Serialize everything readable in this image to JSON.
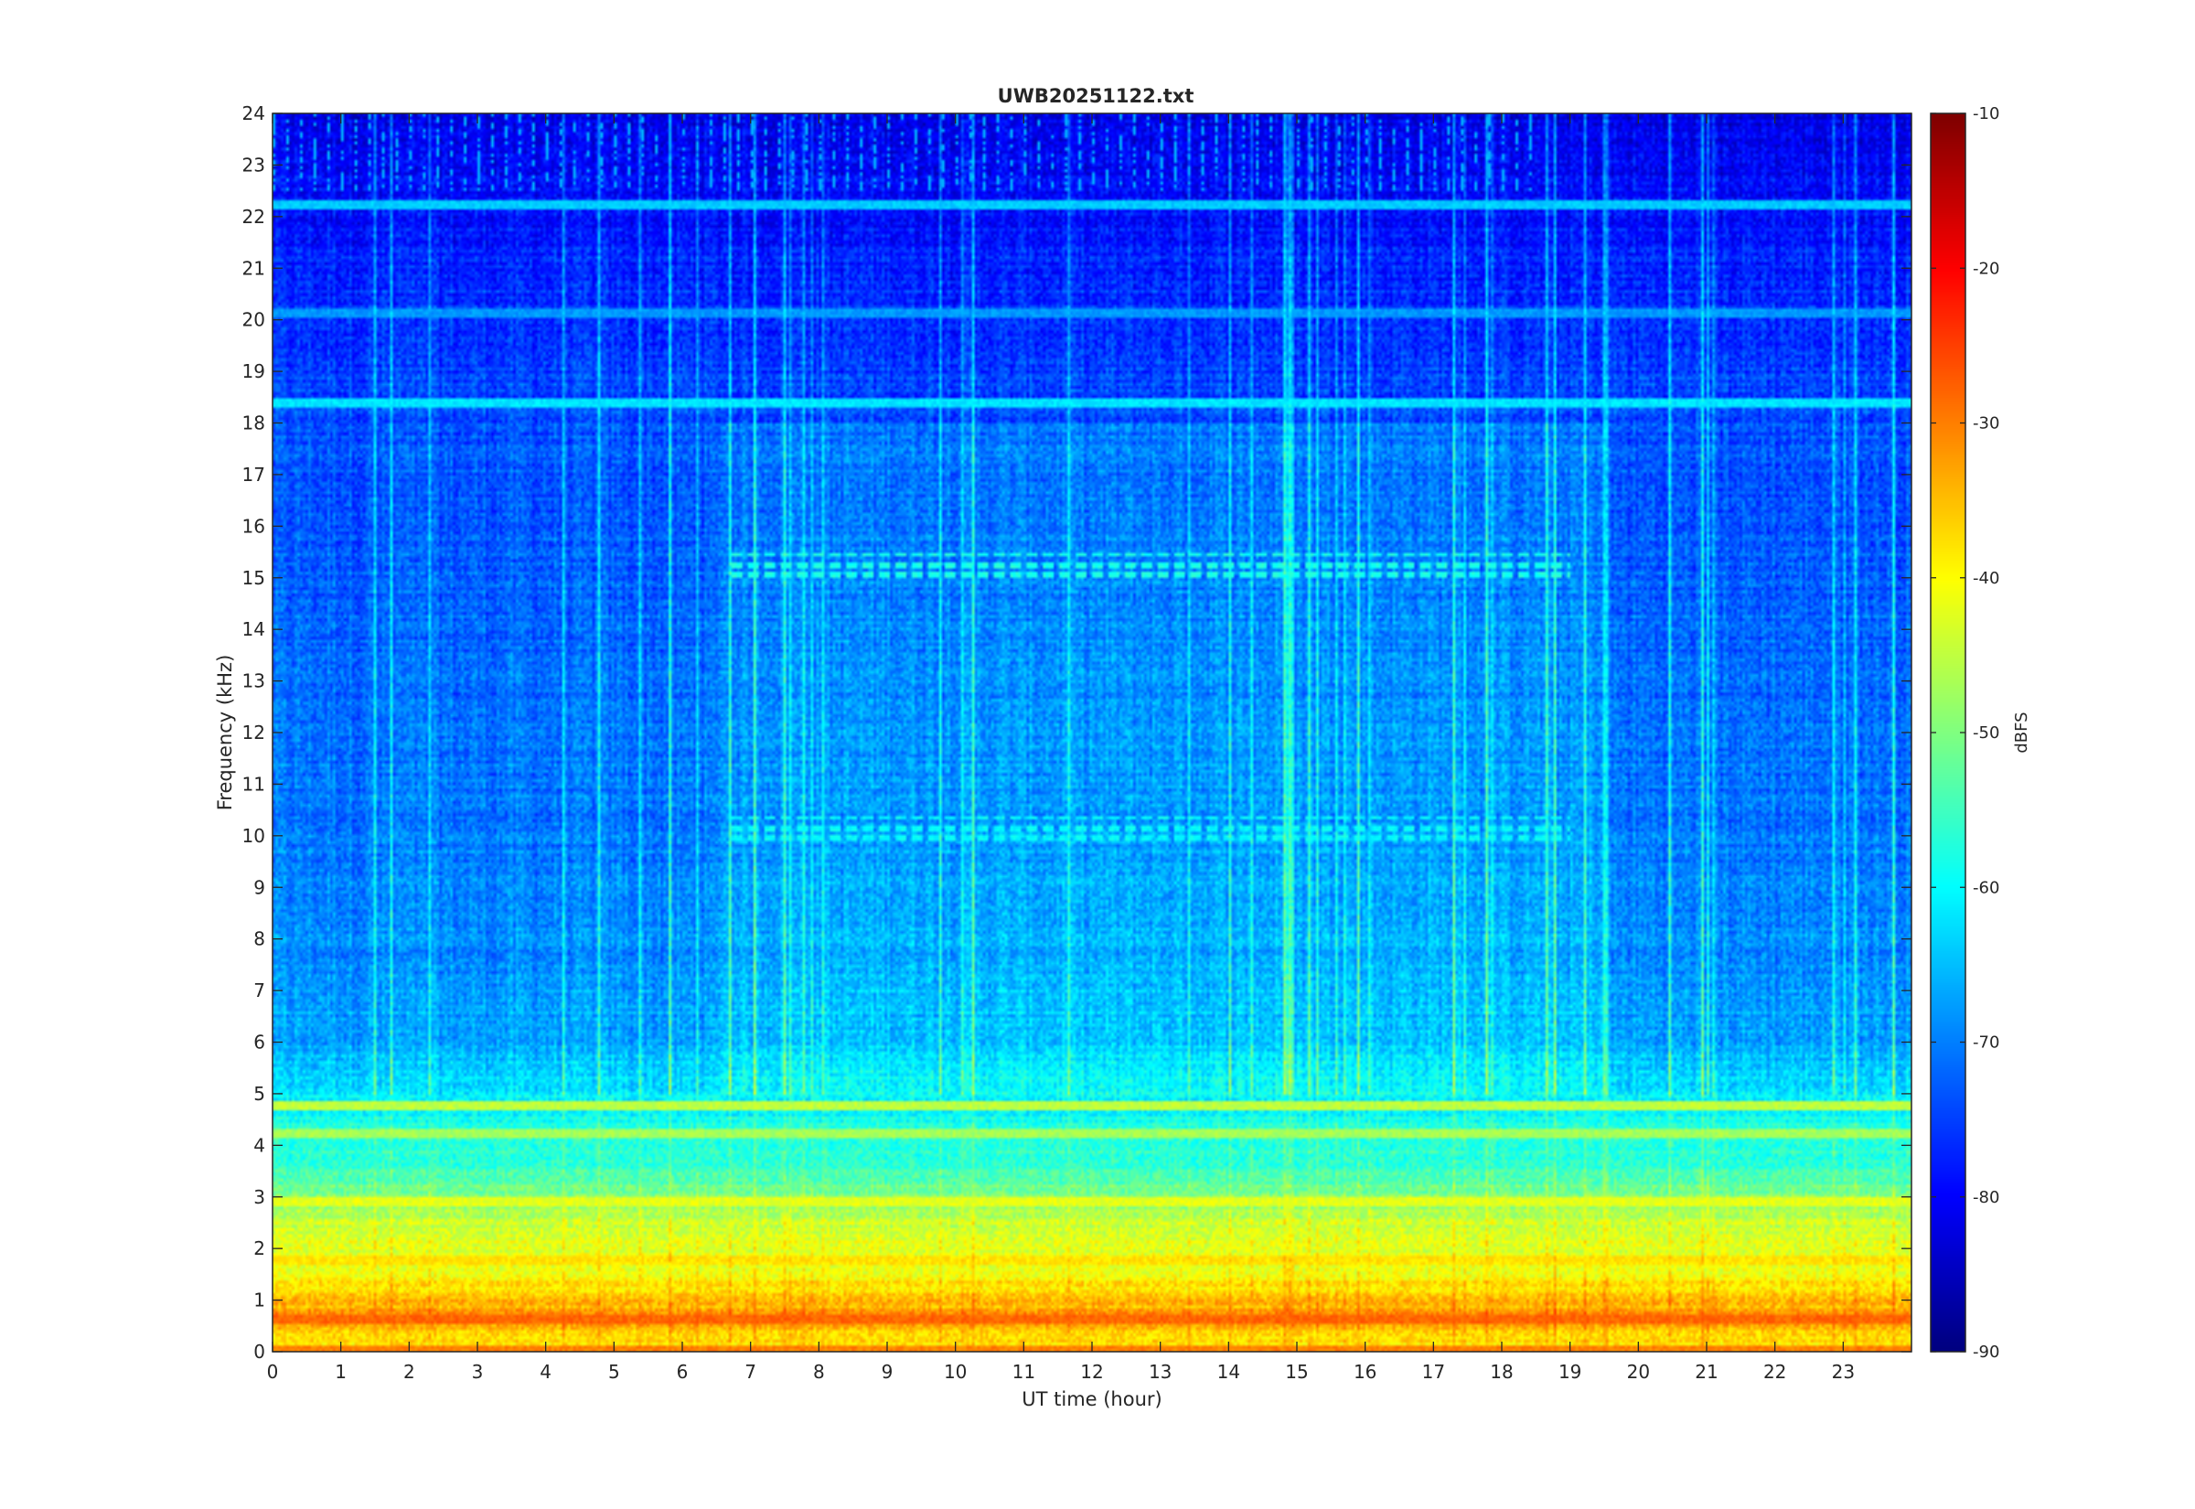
{
  "chart_data": {
    "type": "heatmap",
    "title": "UWB20251122.txt",
    "xlabel": "UT time (hour)",
    "ylabel": "Frequency (kHz)",
    "xlim": [
      0,
      24
    ],
    "ylim": [
      0,
      24
    ],
    "x_ticks": [
      "0",
      "1",
      "2",
      "3",
      "4",
      "5",
      "6",
      "7",
      "8",
      "9",
      "10",
      "11",
      "12",
      "13",
      "14",
      "15",
      "16",
      "17",
      "18",
      "19",
      "20",
      "21",
      "22",
      "23"
    ],
    "y_ticks": [
      "0",
      "1",
      "2",
      "3",
      "4",
      "5",
      "6",
      "7",
      "8",
      "9",
      "10",
      "11",
      "12",
      "13",
      "14",
      "15",
      "16",
      "17",
      "18",
      "19",
      "20",
      "21",
      "22",
      "23",
      "24"
    ],
    "colorbar": {
      "label": "dBFS",
      "clim": [
        -90,
        -10
      ],
      "ticks": [
        "-90",
        "-80",
        "-70",
        "-60",
        "-50",
        "-40",
        "-30",
        "-20",
        "-10"
      ],
      "colormap": "jet"
    },
    "background_level_profile": [
      {
        "freq_khz": 0.0,
        "dbfs": -40
      },
      {
        "freq_khz": 0.7,
        "dbfs": -32
      },
      {
        "freq_khz": 1.5,
        "dbfs": -40
      },
      {
        "freq_khz": 2.5,
        "dbfs": -44
      },
      {
        "freq_khz": 3.5,
        "dbfs": -55
      },
      {
        "freq_khz": 4.8,
        "dbfs": -60
      },
      {
        "freq_khz": 6.0,
        "dbfs": -67
      },
      {
        "freq_khz": 9.0,
        "dbfs": -70
      },
      {
        "freq_khz": 14.0,
        "dbfs": -72
      },
      {
        "freq_khz": 18.0,
        "dbfs": -74
      },
      {
        "freq_khz": 21.0,
        "dbfs": -77
      },
      {
        "freq_khz": 24.0,
        "dbfs": -82
      }
    ],
    "persistent_lines": [
      {
        "freq_khz": 0.65,
        "dbfs": -28
      },
      {
        "freq_khz": 0.05,
        "dbfs": -30
      },
      {
        "freq_khz": 1.8,
        "dbfs": -38
      },
      {
        "freq_khz": 2.9,
        "dbfs": -42
      },
      {
        "freq_khz": 4.2,
        "dbfs": -47
      },
      {
        "freq_khz": 4.8,
        "dbfs": -45
      },
      {
        "freq_khz": 18.4,
        "dbfs": -62
      },
      {
        "freq_khz": 22.25,
        "dbfs": -64
      },
      {
        "freq_khz": 20.1,
        "dbfs": -68
      }
    ],
    "pulsed_bands": [
      {
        "freq_khz": 15.2,
        "start_hour": 6.7,
        "end_hour": 19.0,
        "dbfs": -58
      },
      {
        "freq_khz": 10.1,
        "start_hour": 6.7,
        "end_hour": 19.0,
        "dbfs": -60
      }
    ]
  }
}
